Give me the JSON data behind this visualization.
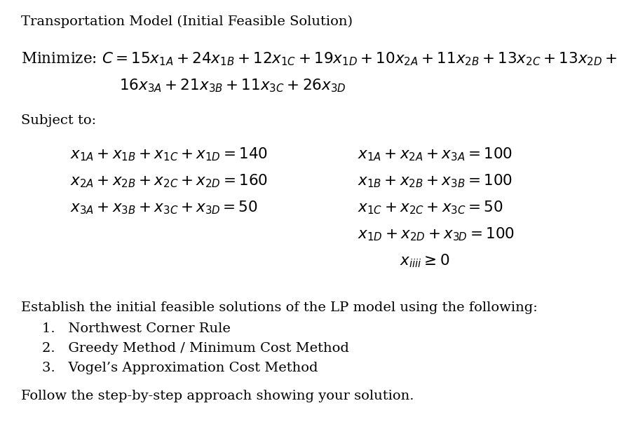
{
  "bg_color": "#ffffff",
  "text_color": "#000000",
  "fig_width": 9.1,
  "fig_height": 6.12,
  "dpi": 100,
  "title": "Transportation Model (Initial Feasible Solution)",
  "minimize_line1": "Minimize: $\\mathit{C} = 15x_{1A} + 24x_{1B} + 12x_{1C} + 19x_{1D} + 10x_{2A} + 11x_{2B} + 13x_{2C} + 13x_{2D} +$",
  "minimize_line2": "$16x_{3A} + 21x_{3B} + 11x_{3C} + 26x_{3D}$",
  "subject_to": "Subject to:",
  "supply": [
    "$x_{1A} + x_{1B} + x_{1C} + x_{1D} = 140$",
    "$x_{2A} + x_{2B} + x_{2C} + x_{2D} = 160$",
    "$x_{3A} + x_{3B} + x_{3C} + x_{3D} = 50$"
  ],
  "demand": [
    "$x_{1A} + x_{2A} + x_{3A} = 100$",
    "$x_{1B} + x_{2B} + x_{3B} = 100$",
    "$x_{1C} + x_{2C} + x_{3C} = 50$",
    "$x_{1D} + x_{2D} + x_{3D} = 100$",
    "$x_{iiii} \\geq 0$"
  ],
  "establish": "Establish the initial feasible solutions of the LP model using the following:",
  "items": [
    "1.   Northwest Corner Rule",
    "2.   Greedy Method / Minimum Cost Method",
    "3.   Vogel’s Approximation Cost Method"
  ],
  "follow": "Follow the step-by-step approach showing your solution."
}
